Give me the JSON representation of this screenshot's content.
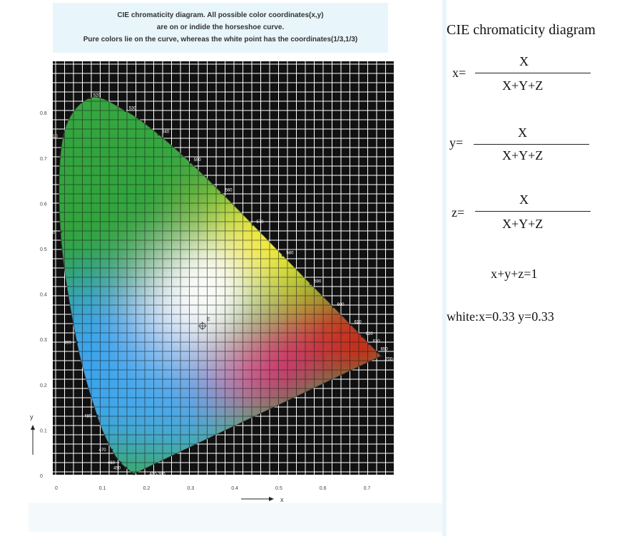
{
  "caption": {
    "line1": "CIE chromaticity diagram. All possible color coordinates(x,y)",
    "line2": "are on or indide the horseshoe curve.",
    "line3": "Pure colors lie on the curve, whereas the white point has the coordinates(1/3,1/3)"
  },
  "diagram": {
    "white_point_label": "E",
    "x_axis_label": "x",
    "y_axis_label": "y",
    "x_ticks": [
      "0",
      "0.1",
      "0.2",
      "0.3",
      "0.4",
      "0.5",
      "0.6",
      "0.7"
    ],
    "y_ticks": [
      "0",
      "0.1",
      "0.2",
      "0.3",
      "0.4",
      "0.5",
      "0.6",
      "0.7",
      "0.8"
    ],
    "wavelengths": [
      {
        "label": "520",
        "x": 0.074,
        "y": 0.834
      },
      {
        "label": "530",
        "x": 0.155,
        "y": 0.806
      },
      {
        "label": "540",
        "x": 0.23,
        "y": 0.754
      },
      {
        "label": "550",
        "x": 0.302,
        "y": 0.692
      },
      {
        "label": "560",
        "x": 0.373,
        "y": 0.625
      },
      {
        "label": "570",
        "x": 0.444,
        "y": 0.555
      },
      {
        "label": "580",
        "x": 0.512,
        "y": 0.487
      },
      {
        "label": "590",
        "x": 0.575,
        "y": 0.424
      },
      {
        "label": "600",
        "x": 0.627,
        "y": 0.373
      },
      {
        "label": "610",
        "x": 0.666,
        "y": 0.334
      },
      {
        "label": "620",
        "x": 0.692,
        "y": 0.308
      },
      {
        "label": "630",
        "x": 0.708,
        "y": 0.292
      },
      {
        "label": "650",
        "x": 0.726,
        "y": 0.274
      },
      {
        "label": "700-750",
        "x": 0.735,
        "y": 0.265
      },
      {
        "label": "510",
        "x": 0.014,
        "y": 0.75
      },
      {
        "label": "500",
        "x": 0.008,
        "y": 0.538
      },
      {
        "label": "490",
        "x": 0.045,
        "y": 0.295
      },
      {
        "label": "480",
        "x": 0.091,
        "y": 0.133
      },
      {
        "label": "470",
        "x": 0.124,
        "y": 0.058
      },
      {
        "label": "460",
        "x": 0.144,
        "y": 0.03
      },
      {
        "label": "450",
        "x": 0.157,
        "y": 0.018
      },
      {
        "label": "400-380",
        "x": 0.174,
        "y": 0.005
      }
    ],
    "white_point": {
      "x": 0.333,
      "y": 0.333
    },
    "colors": {
      "grid_bg": "#111111",
      "grid_line": "#ffffff",
      "green": "#35a840",
      "yellow": "#f6ea2a",
      "red": "#d8261f",
      "magenta": "#e2287a",
      "blue": "#3ea6e6"
    }
  },
  "equations": {
    "title": "CIE chromaticity diagram",
    "x_lhs": "x=",
    "y_lhs": "y=",
    "z_lhs": "z=",
    "numerator": "X",
    "denominator": "X+Y+Z",
    "sum": "x+y+z=1",
    "white": "white:x=0.33 y=0.33"
  }
}
